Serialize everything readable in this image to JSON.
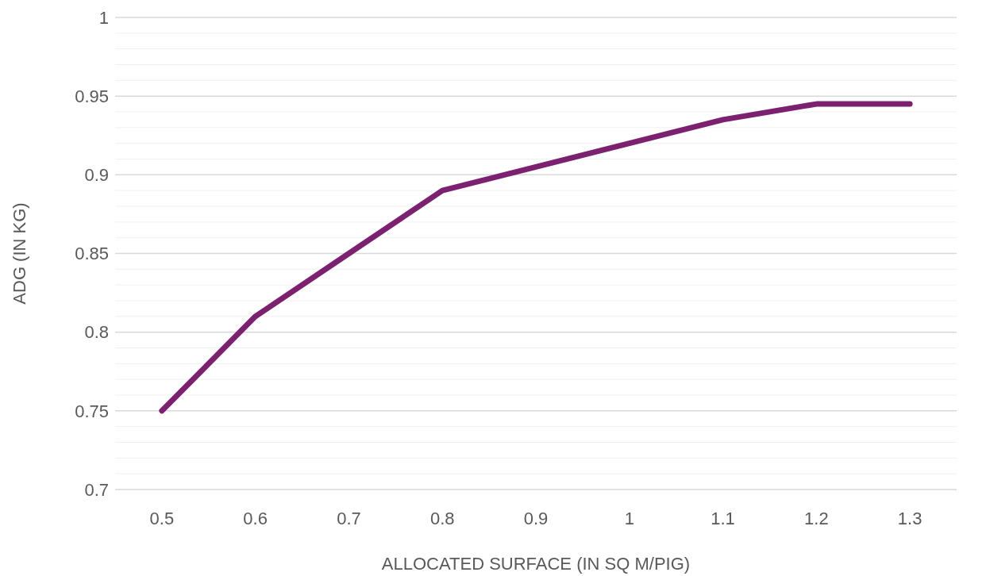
{
  "chart_data": {
    "type": "line",
    "xlabel": "ALLOCATED SURFACE (IN SQ M/PIG)",
    "ylabel": "ADG (IN KG)",
    "categories": [
      "0.5",
      "0.6",
      "0.7",
      "0.8",
      "0.9",
      "1",
      "1.1",
      "1.2",
      "1.3"
    ],
    "series": [
      {
        "color": "#7b2170",
        "values": [
          0.75,
          0.81,
          0.85,
          0.89,
          0.905,
          0.92,
          0.935,
          0.945,
          0.945
        ]
      }
    ],
    "ylim": [
      0.7,
      1
    ],
    "yticks": [
      0.7,
      {
        "value": 0.71,
        "label": null
      },
      {
        "value": 0.72,
        "label": null
      },
      {
        "value": 0.73,
        "label": null
      },
      {
        "value": 0.74,
        "label": null
      },
      0.75,
      {
        "value": 0.76,
        "label": null
      },
      {
        "value": 0.77,
        "label": null
      },
      {
        "value": 0.78,
        "label": null
      },
      {
        "value": 0.79,
        "label": null
      },
      0.8,
      {
        "value": 0.81,
        "label": null
      },
      {
        "value": 0.82,
        "label": null
      },
      {
        "value": 0.83,
        "label": null
      },
      {
        "value": 0.84,
        "label": null
      },
      0.85,
      {
        "value": 0.86,
        "label": null
      },
      {
        "value": 0.87,
        "label": null
      },
      {
        "value": 0.88,
        "label": null
      },
      {
        "value": 0.89,
        "label": null
      },
      0.9,
      {
        "value": 0.91,
        "label": null
      },
      {
        "value": 0.92,
        "label": null
      },
      {
        "value": 0.93,
        "label": null
      },
      {
        "value": 0.94,
        "label": null
      },
      0.95,
      {
        "value": 0.96,
        "label": null
      },
      {
        "value": 0.97,
        "label": null
      },
      {
        "value": 0.98,
        "label": null
      },
      {
        "value": 0.99,
        "label": null
      },
      1
    ],
    "grid": "y",
    "marker": "none",
    "line_style": "solid"
  }
}
